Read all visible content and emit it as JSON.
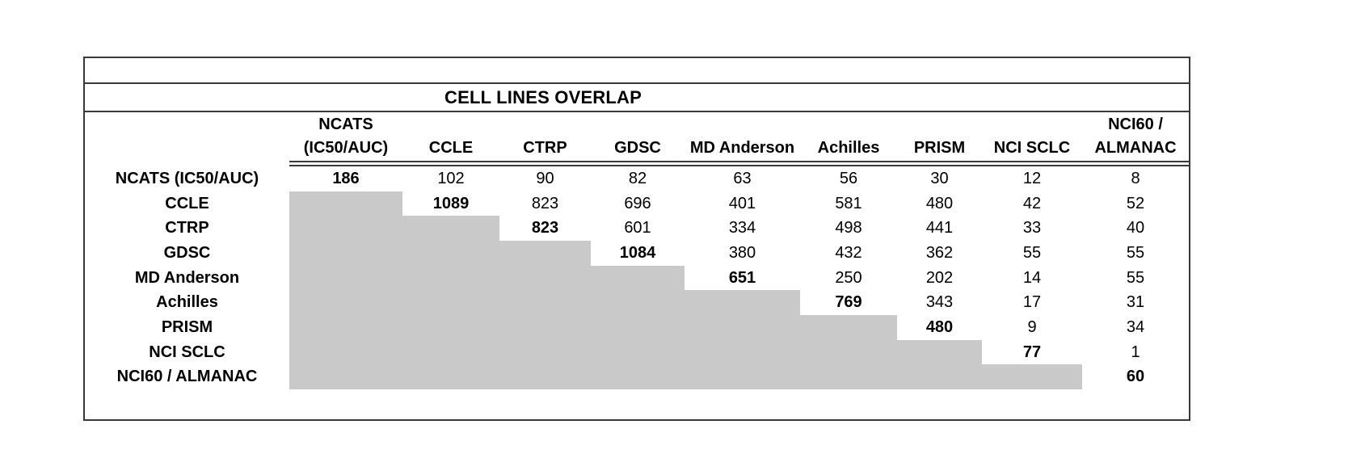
{
  "title": "CELL LINES OVERLAP",
  "colors": {
    "masked_cell_fill": "#c9c9c9",
    "border": "#3a3a3a",
    "text": "#000000",
    "background": "#ffffff"
  },
  "col_headers": [
    "NCATS\n(IC50/AUC)",
    "CCLE",
    "CTRP",
    "GDSC",
    "MD Anderson",
    "Achilles",
    "PRISM",
    "NCI SCLC",
    "NCI60 /\nALMANAC"
  ],
  "matrix": {
    "rows": [
      {
        "label": "NCATS (IC50/AUC)",
        "cells": [
          "186",
          "102",
          "90",
          "82",
          "63",
          "56",
          "30",
          "12",
          "8"
        ]
      },
      {
        "label": "CCLE",
        "cells": [
          "",
          "1089",
          "823",
          "696",
          "401",
          "581",
          "480",
          "42",
          "52"
        ]
      },
      {
        "label": "CTRP",
        "cells": [
          "",
          "",
          "823",
          "601",
          "334",
          "498",
          "441",
          "33",
          "40"
        ]
      },
      {
        "label": "GDSC",
        "cells": [
          "",
          "",
          "",
          "1084",
          "380",
          "432",
          "362",
          "55",
          "55"
        ]
      },
      {
        "label": "MD Anderson",
        "cells": [
          "",
          "",
          "",
          "",
          "651",
          "250",
          "202",
          "14",
          "55"
        ]
      },
      {
        "label": "Achilles",
        "cells": [
          "",
          "",
          "",
          "",
          "",
          "769",
          "343",
          "17",
          "31"
        ]
      },
      {
        "label": "PRISM",
        "cells": [
          "",
          "",
          "",
          "",
          "",
          "",
          "480",
          "9",
          "34"
        ]
      },
      {
        "label": "NCI SCLC",
        "cells": [
          "",
          "",
          "",
          "",
          "",
          "",
          "",
          "77",
          "1"
        ]
      },
      {
        "label": "NCI60 / ALMANAC",
        "cells": [
          "",
          "",
          "",
          "",
          "",
          "",
          "",
          "",
          "60"
        ]
      }
    ]
  }
}
